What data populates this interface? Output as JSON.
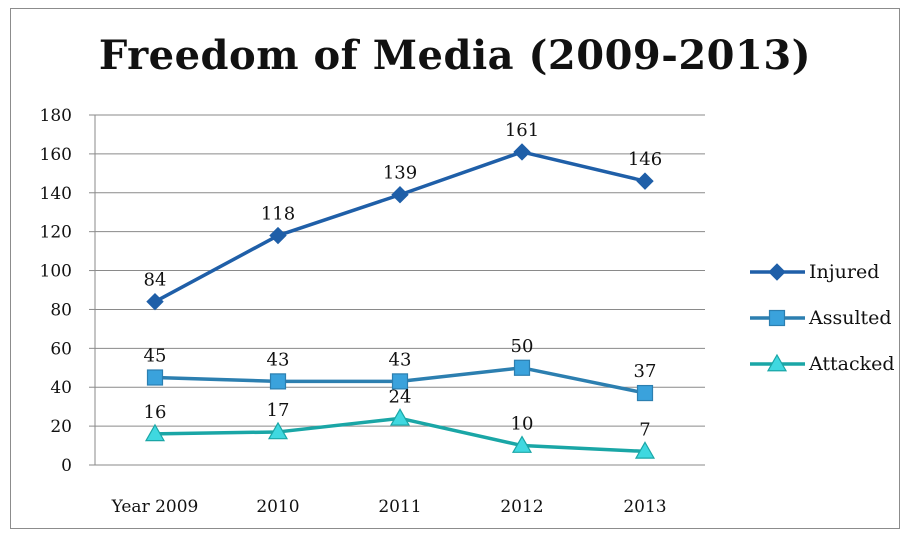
{
  "chart_data": {
    "type": "line",
    "title": "Freedom of Media (2009-2013)",
    "categories": [
      "Year 2009",
      "2010",
      "2011",
      "2012",
      "2013"
    ],
    "ylim": [
      0,
      180
    ],
    "yticks": [
      "0",
      "20",
      "40",
      "60",
      "80",
      "100",
      "120",
      "140",
      "160",
      "180"
    ],
    "grid": true,
    "legend": "right",
    "series": [
      {
        "name": "Injured",
        "values": [
          84,
          118,
          139,
          161,
          146
        ],
        "color": "#1f5fa8",
        "marker": "diamond"
      },
      {
        "name": "Assulted",
        "values": [
          45,
          43,
          43,
          50,
          37
        ],
        "color": "#2c7fb0",
        "marker": "square",
        "fill": "#3aa2dc"
      },
      {
        "name": "Attacked",
        "values": [
          16,
          17,
          24,
          10,
          7
        ],
        "color": "#1aa6a6",
        "marker": "triangle",
        "fill": "#3fd8e0"
      }
    ]
  }
}
